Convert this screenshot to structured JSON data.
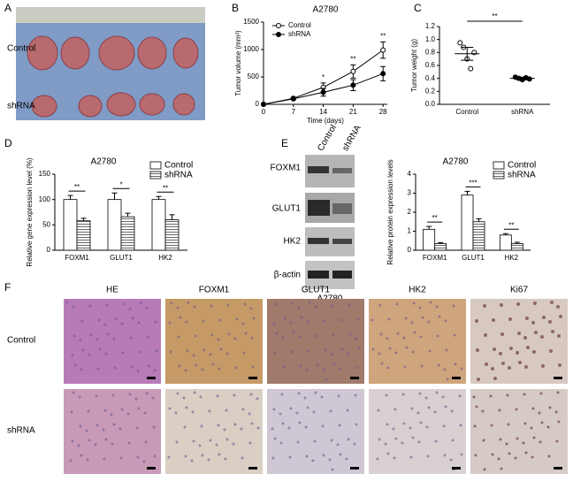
{
  "panel_letters": [
    "A",
    "B",
    "C",
    "D",
    "E",
    "F"
  ],
  "photo": {
    "row_labels": [
      "Control",
      "shRNA"
    ]
  },
  "chart_data": [
    {
      "type": "line",
      "title": "A2780",
      "xlabel": "Time (days)",
      "ylabel": "Tumor volume (mm³)",
      "x": [
        0,
        7,
        14,
        21,
        28
      ],
      "xlim": [
        0,
        29
      ],
      "xticks": [
        0,
        7,
        14,
        21,
        28
      ],
      "ylim": [
        0,
        1500
      ],
      "yticks": [
        0,
        500,
        1000,
        1500
      ],
      "legend": "upper left",
      "series": [
        {
          "name": "Control",
          "color": "#000000",
          "marker": "open",
          "values": [
            0,
            110,
            310,
            600,
            990
          ],
          "errors": [
            0,
            20,
            80,
            120,
            150
          ]
        },
        {
          "name": "shRNA",
          "color": "#000000",
          "marker": "filled",
          "values": [
            0,
            100,
            220,
            350,
            560
          ],
          "errors": [
            0,
            15,
            70,
            100,
            130
          ]
        }
      ],
      "annotations": [
        {
          "x": 14,
          "text": "*"
        },
        {
          "x": 21,
          "text": "**"
        },
        {
          "x": 28,
          "text": "**"
        }
      ]
    },
    {
      "type": "strip",
      "ylabel": "Tumor weight (g)",
      "categories": [
        "Control",
        "shRNA"
      ],
      "ylim": [
        0,
        1.2
      ],
      "yticks": [
        {
          "value": 0,
          "label": "0.0"
        },
        0.2,
        0.4,
        0.6,
        0.8,
        {
          "value": 1.0,
          "label": "1.0"
        },
        1.2
      ],
      "series": [
        {
          "name": "Control",
          "color": "#000000",
          "marker": "open",
          "values": [
            0.95,
            0.88,
            0.7,
            0.55,
            0.8
          ],
          "mean": 0.78,
          "error": 0.1
        },
        {
          "name": "shRNA",
          "color": "#000000",
          "marker": "filled",
          "values": [
            0.42,
            0.4,
            0.38,
            0.41,
            0.39
          ],
          "mean": 0.4,
          "error": 0.02
        }
      ],
      "annotation": "**"
    },
    {
      "type": "bar",
      "title": "A2780",
      "ylabel": "Relative gene expression level (%)",
      "categories": [
        "FOXM1",
        "GLUT1",
        "HK2"
      ],
      "ylim": [
        0,
        150
      ],
      "yticks": [
        0,
        50,
        100,
        150
      ],
      "legend": "upper right",
      "series": [
        {
          "name": "Control",
          "color": "#ffffff",
          "hatch": false,
          "values": [
            100,
            100,
            100
          ],
          "errors": [
            8,
            13,
            6
          ]
        },
        {
          "name": "shRNA",
          "color": "#ffffff",
          "hatch": true,
          "values": [
            58,
            66,
            60
          ],
          "errors": [
            5,
            7,
            10
          ]
        }
      ],
      "annotations": [
        "**",
        "*",
        "**"
      ]
    },
    {
      "type": "bar",
      "title": "A2780",
      "ylabel": "Relative protein expression levels",
      "categories": [
        "FOXM1",
        "GLUT1",
        "HK2"
      ],
      "ylim": [
        0,
        4
      ],
      "yticks": [
        0,
        1,
        2,
        3,
        4
      ],
      "legend": "upper right",
      "series": [
        {
          "name": "Control",
          "color": "#ffffff",
          "hatch": false,
          "values": [
            1.1,
            2.9,
            0.8
          ],
          "errors": [
            0.15,
            0.2,
            0.07
          ]
        },
        {
          "name": "shRNA",
          "color": "#ffffff",
          "hatch": true,
          "values": [
            0.35,
            1.5,
            0.35
          ],
          "errors": [
            0.05,
            0.15,
            0.07
          ]
        }
      ],
      "annotations": [
        "**",
        "***",
        "**"
      ]
    }
  ],
  "blot": {
    "column_labels": [
      "Control",
      "shRNA"
    ],
    "row_labels": [
      "FOXM1",
      "GLUT1",
      "HK2",
      "β-actin"
    ],
    "caption": "A2780"
  },
  "ihc": {
    "column_labels": [
      "HE",
      "FOXM1",
      "GLUT1",
      "HK2",
      "Ki67"
    ],
    "row_labels": [
      "Control",
      "shRNA"
    ]
  }
}
